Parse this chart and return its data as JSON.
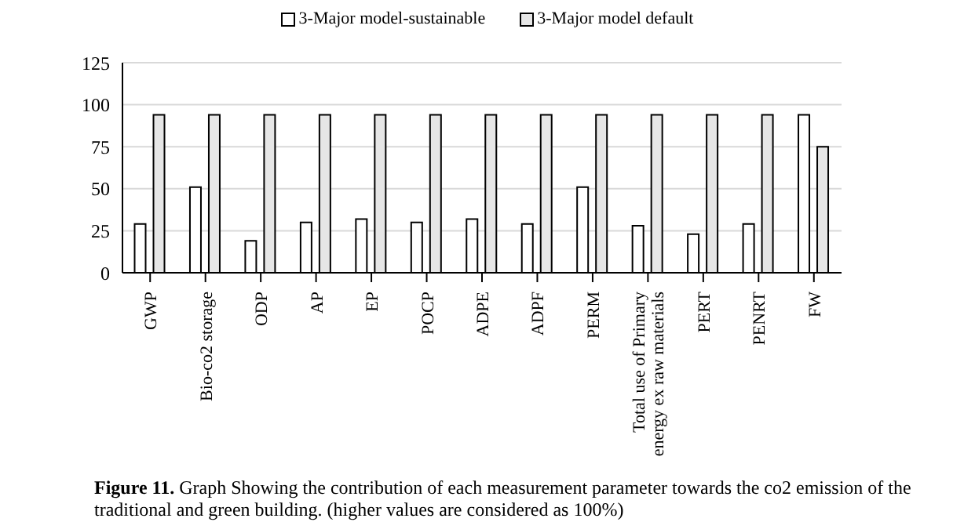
{
  "chart_data": {
    "type": "bar",
    "categories": [
      "GWP",
      "Bio-co2 storage",
      "ODP",
      "AP",
      "EP",
      "POCP",
      "ADPE",
      "ADPF",
      "PERM",
      "Total use  of Primary energy ex raw materials",
      "PERT",
      "PENRT",
      "FW"
    ],
    "series": [
      {
        "name": "3-Major model-sustainable",
        "color": "#ffffff",
        "values": [
          29,
          51,
          19,
          30,
          32,
          30,
          32,
          29,
          51,
          28,
          23,
          29,
          94
        ]
      },
      {
        "name": "3-Major model default",
        "color": "#e6e6e6",
        "values": [
          94,
          94,
          94,
          94,
          94,
          94,
          94,
          94,
          94,
          94,
          94,
          94,
          75
        ]
      }
    ],
    "ylim": [
      0,
      125
    ],
    "yticks": [
      0,
      25,
      50,
      75,
      100,
      125
    ],
    "grid": "y",
    "legend": "top",
    "annotations": [
      "Figure 11.",
      "Graph Showing the contribution of each measurement parameter towards the co2 emission of the traditional and green building. (higher values are considered as 100%)"
    ]
  }
}
